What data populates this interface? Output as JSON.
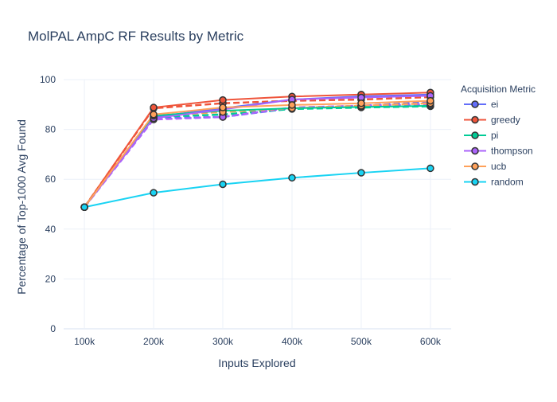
{
  "chart_data": {
    "type": "line",
    "title": "MolPAL AmpC RF Results by Metric",
    "xlabel": "Inputs Explored",
    "ylabel": "Percentage of Top-1000 Avg Found",
    "categories": [
      "100k",
      "200k",
      "300k",
      "400k",
      "500k",
      "600k"
    ],
    "x": [
      100,
      200,
      300,
      400,
      500,
      600
    ],
    "ylim": [
      0,
      100
    ],
    "yticks": [
      0,
      20,
      40,
      60,
      80,
      100
    ],
    "grid": true,
    "legend_title": "Acquisition Metric",
    "legend_position": "right",
    "series": [
      {
        "name": "ei",
        "color": "#636efa",
        "solid": [
          48.8,
          85.0,
          88.5,
          92.0,
          93.3,
          94.0
        ],
        "dashed": [
          48.8,
          84.5,
          85.0,
          88.5,
          89.5,
          91.0
        ]
      },
      {
        "name": "greedy",
        "color": "#ef553b",
        "solid": [
          48.8,
          88.8,
          91.8,
          93.2,
          94.0,
          94.8
        ],
        "dashed": [
          48.8,
          88.5,
          90.5,
          91.5,
          92.0,
          93.0
        ]
      },
      {
        "name": "pi",
        "color": "#00cc96",
        "solid": [
          48.8,
          85.5,
          87.5,
          88.5,
          89.0,
          89.5
        ],
        "dashed": [
          48.8,
          85.0,
          86.0,
          88.2,
          88.8,
          89.3
        ]
      },
      {
        "name": "thompson",
        "color": "#ab63fa",
        "solid": [
          48.8,
          84.5,
          88.0,
          92.0,
          92.8,
          93.5
        ],
        "dashed": [
          48.8,
          84.0,
          85.0,
          88.8,
          89.5,
          90.0
        ]
      },
      {
        "name": "ucb",
        "color": "#ffa15a",
        "solid": [
          48.8,
          86.0,
          88.8,
          89.8,
          90.5,
          91.5
        ],
        "dashed": [
          48.8,
          85.5,
          87.0,
          88.5,
          89.5,
          90.5
        ]
      },
      {
        "name": "random",
        "color": "#19d3f3",
        "solid": [
          48.8,
          54.6,
          58.0,
          60.6,
          62.6,
          64.4
        ],
        "dashed": []
      }
    ]
  }
}
